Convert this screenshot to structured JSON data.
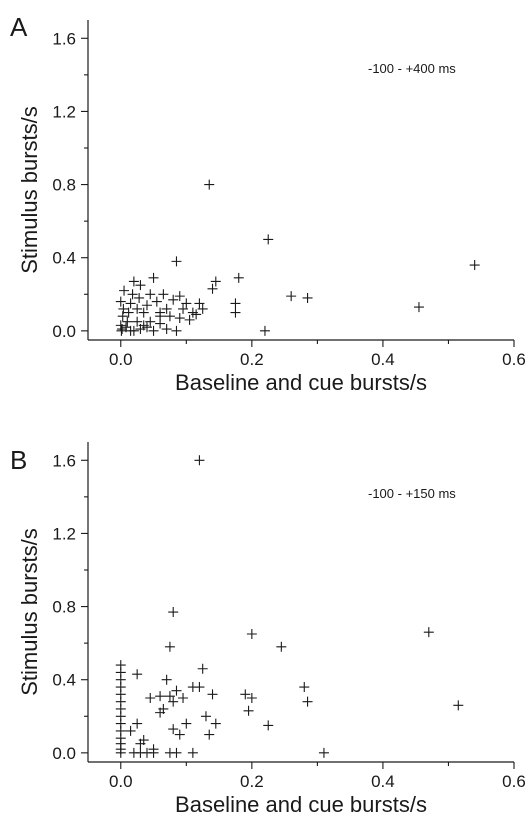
{
  "chart_data": [
    {
      "type": "scatter",
      "panel_label": "A",
      "annotation": "-100 - +400 ms",
      "xlabel": "Baseline and cue bursts/s",
      "ylabel": "Stimulus bursts/s",
      "xlim": [
        -0.05,
        0.6
      ],
      "ylim": [
        -0.05,
        1.7
      ],
      "xticks": [
        "0.0",
        "0.2",
        "0.4",
        "0.6"
      ],
      "yticks": [
        "0.0",
        "0.4",
        "0.8",
        "1.2",
        "1.6"
      ],
      "marker": "+",
      "grid": false,
      "series": [
        {
          "points": [
            [
              0.135,
              0.8
            ],
            [
              0.225,
              0.5
            ],
            [
              0.54,
              0.36
            ],
            [
              0.085,
              0.38
            ],
            [
              0.455,
              0.13
            ],
            [
              0.26,
              0.19
            ],
            [
              0.285,
              0.18
            ],
            [
              0.22,
              0.0
            ],
            [
              0.18,
              0.29
            ],
            [
              0.175,
              0.15
            ],
            [
              0.175,
              0.1
            ],
            [
              0.145,
              0.27
            ],
            [
              0.14,
              0.23
            ],
            [
              0.12,
              0.15
            ],
            [
              0.1,
              0.15
            ],
            [
              0.11,
              0.1
            ],
            [
              0.09,
              0.19
            ],
            [
              0.08,
              0.17
            ],
            [
              0.09,
              0.07
            ],
            [
              0.085,
              0.0
            ],
            [
              0.07,
              0.12
            ],
            [
              0.06,
              0.08
            ],
            [
              0.05,
              0.29
            ],
            [
              0.045,
              0.2
            ],
            [
              0.04,
              0.14
            ],
            [
              0.035,
              0.1
            ],
            [
              0.03,
              0.25
            ],
            [
              0.025,
              0.05
            ],
            [
              0.02,
              0.27
            ],
            [
              0.018,
              0.2
            ],
            [
              0.015,
              0.15
            ],
            [
              0.012,
              0.1
            ],
            [
              0.01,
              0.05
            ],
            [
              0.008,
              0.02
            ],
            [
              0.005,
              0.22
            ],
            [
              0.004,
              0.12
            ],
            [
              0.003,
              0.08
            ],
            [
              0.002,
              0.01
            ],
            [
              0.001,
              0.0
            ],
            [
              0.0,
              0.03
            ],
            [
              0.0,
              0.16
            ],
            [
              0.02,
              0.0
            ],
            [
              0.03,
              0.01
            ],
            [
              0.04,
              0.02
            ],
            [
              0.05,
              0.0
            ],
            [
              0.06,
              0.04
            ],
            [
              0.07,
              0.01
            ],
            [
              0.045,
              0.05
            ],
            [
              0.055,
              0.16
            ],
            [
              0.065,
              0.2
            ],
            [
              0.075,
              0.08
            ],
            [
              0.095,
              0.12
            ],
            [
              0.105,
              0.06
            ],
            [
              0.115,
              0.09
            ],
            [
              0.125,
              0.12
            ],
            [
              0.035,
              0.03
            ],
            [
              0.015,
              0.0
            ],
            [
              0.025,
              0.12
            ],
            [
              0.028,
              0.18
            ],
            [
              0.06,
              0.1
            ]
          ]
        }
      ]
    },
    {
      "type": "scatter",
      "panel_label": "B",
      "annotation": "-100 - +150 ms",
      "xlabel": "Baseline and cue bursts/s",
      "ylabel": "Stimulus bursts/s",
      "xlim": [
        -0.05,
        0.6
      ],
      "ylim": [
        -0.05,
        1.7
      ],
      "xticks": [
        "0.0",
        "0.2",
        "0.4",
        "0.6"
      ],
      "yticks": [
        "0.0",
        "0.4",
        "0.8",
        "1.2",
        "1.6"
      ],
      "marker": "+",
      "grid": false,
      "series": [
        {
          "points": [
            [
              0.12,
              1.6
            ],
            [
              0.08,
              0.77
            ],
            [
              0.075,
              0.58
            ],
            [
              0.2,
              0.65
            ],
            [
              0.245,
              0.58
            ],
            [
              0.47,
              0.66
            ],
            [
              0.515,
              0.26
            ],
            [
              0.31,
              0.0
            ],
            [
              0.28,
              0.36
            ],
            [
              0.285,
              0.28
            ],
            [
              0.225,
              0.15
            ],
            [
              0.2,
              0.3
            ],
            [
              0.195,
              0.23
            ],
            [
              0.19,
              0.32
            ],
            [
              0.145,
              0.16
            ],
            [
              0.14,
              0.32
            ],
            [
              0.135,
              0.1
            ],
            [
              0.13,
              0.2
            ],
            [
              0.125,
              0.46
            ],
            [
              0.12,
              0.36
            ],
            [
              0.11,
              0.36
            ],
            [
              0.11,
              0.0
            ],
            [
              0.1,
              0.16
            ],
            [
              0.095,
              0.3
            ],
            [
              0.09,
              0.1
            ],
            [
              0.085,
              0.34
            ],
            [
              0.085,
              0.0
            ],
            [
              0.08,
              0.13
            ],
            [
              0.075,
              0.31
            ],
            [
              0.075,
              0.0
            ],
            [
              0.07,
              0.4
            ],
            [
              0.065,
              0.24
            ],
            [
              0.06,
              0.31
            ],
            [
              0.045,
              0.3
            ],
            [
              0.04,
              0.0
            ],
            [
              0.035,
              0.07
            ],
            [
              0.03,
              0.05
            ],
            [
              0.025,
              0.43
            ],
            [
              0.025,
              0.16
            ],
            [
              0.02,
              0.0
            ],
            [
              0.015,
              0.12
            ],
            [
              0.0,
              0.0
            ],
            [
              0.0,
              0.02
            ],
            [
              0.0,
              0.05
            ],
            [
              0.0,
              0.08
            ],
            [
              0.0,
              0.12
            ],
            [
              0.0,
              0.16
            ],
            [
              0.0,
              0.2
            ],
            [
              0.0,
              0.24
            ],
            [
              0.0,
              0.28
            ],
            [
              0.0,
              0.32
            ],
            [
              0.0,
              0.36
            ],
            [
              0.0,
              0.4
            ],
            [
              0.0,
              0.44
            ],
            [
              0.0,
              0.48
            ],
            [
              0.05,
              0.0
            ],
            [
              0.03,
              0.0
            ],
            [
              0.06,
              0.22
            ],
            [
              0.05,
              0.02
            ],
            [
              0.08,
              0.28
            ]
          ]
        }
      ]
    }
  ]
}
